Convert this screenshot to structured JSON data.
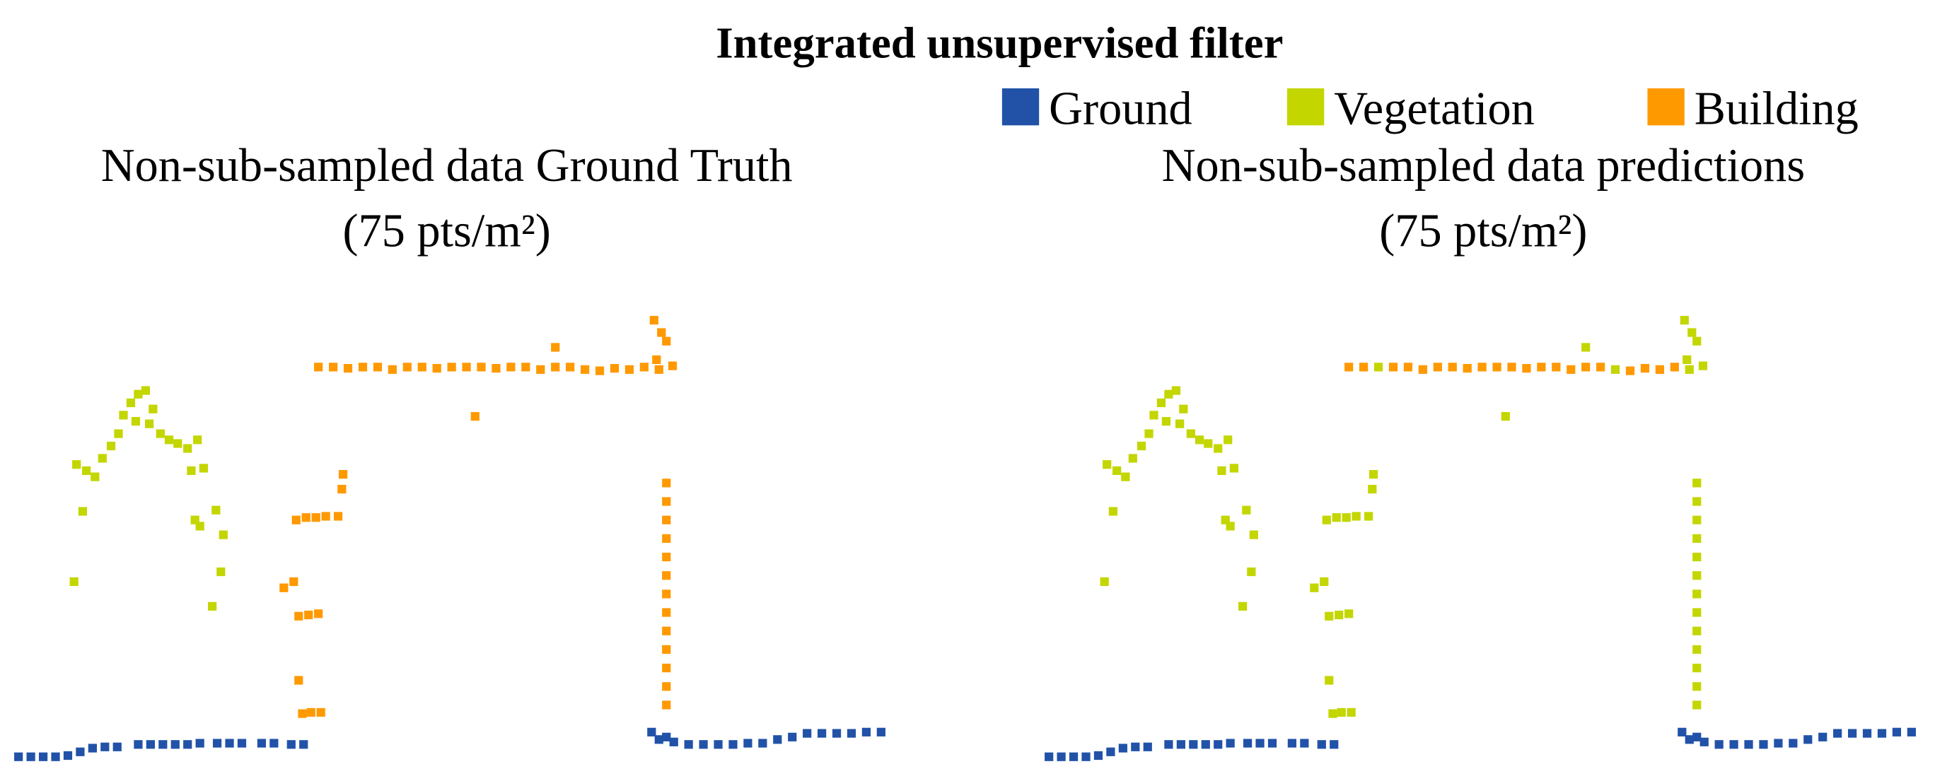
{
  "title": "Integrated unsupervised filter",
  "legend": [
    {
      "name": "Ground",
      "color": "#2152a8"
    },
    {
      "name": "Vegetation",
      "color": "#c3d600"
    },
    {
      "name": "Building",
      "color": "#ff9900"
    }
  ],
  "chart_data": [
    {
      "type": "scatter",
      "title": "Non-sub-sampled data Ground Truth",
      "subtitle": "(75 pts/m²)",
      "xlim": [
        0,
        720
      ],
      "ylim": [
        0,
        370
      ],
      "series": [
        {
          "x": [
            15,
            25,
            35,
            45,
            55,
            65,
            75,
            85,
            95,
            112,
            122,
            132,
            142,
            152,
            162,
            176,
            186,
            196,
            212,
            222,
            236,
            246,
            528,
            534,
            540,
            546,
            558,
            570,
            582,
            594,
            606,
            618,
            630,
            642,
            654,
            666,
            678,
            690,
            702,
            714
          ],
          "y": [
            8,
            8,
            8,
            8,
            9,
            12,
            15,
            16,
            16,
            18,
            18,
            18,
            18,
            18,
            19,
            19,
            19,
            19,
            19,
            19,
            18,
            18,
            28,
            22,
            24,
            20,
            18,
            18,
            18,
            18,
            19,
            19,
            22,
            24,
            27,
            27,
            27,
            27,
            28,
            28
          ]
        },
        {
          "x": [
            60,
            67,
            62,
            70,
            77,
            83,
            96,
            100,
            106,
            112,
            118,
            124,
            121,
            130,
            137,
            144,
            152,
            160,
            155,
            165,
            158,
            175,
            181,
            162,
            172,
            179,
            110,
            90
          ],
          "y": [
            150,
            207,
            245,
            240,
            235,
            250,
            270,
            285,
            295,
            302,
            305,
            290,
            278,
            270,
            265,
            262,
            258,
            265,
            240,
            242,
            200,
            208,
            188,
            195,
            130,
            158,
            280,
            260
          ]
        },
        {
          "x": [
            240,
            248,
            256,
            264,
            274,
            277,
            278,
            230,
            238,
            242,
            250,
            258,
            242,
            245,
            252,
            260,
            258,
            270,
            282,
            294,
            306,
            318,
            330,
            342,
            354,
            366,
            378,
            390,
            402,
            414,
            426,
            438,
            450,
            462,
            474,
            486,
            498,
            510,
            522,
            450,
            385,
            530,
            536,
            540,
            532,
            545,
            534,
            540,
            540,
            540,
            540,
            540,
            540,
            540,
            540,
            540,
            540,
            540,
            540,
            540
          ],
          "y": [
            200,
            202,
            202,
            203,
            203,
            225,
            237,
            145,
            150,
            122,
            123,
            124,
            70,
            43,
            44,
            44,
            324,
            324,
            323,
            324,
            324,
            322,
            324,
            324,
            323,
            324,
            324,
            324,
            323,
            324,
            324,
            322,
            324,
            324,
            322,
            321,
            323,
            322,
            324,
            340,
            284,
            362,
            352,
            345,
            330,
            325,
            322,
            230,
            215,
            200,
            185,
            170,
            155,
            140,
            125,
            110,
            95,
            80,
            65,
            50
          ]
        }
      ]
    },
    {
      "type": "scatter",
      "title": "Non-sub-sampled data predictions",
      "subtitle": "(75 pts/m²)",
      "xlim": [
        0,
        720
      ],
      "ylim": [
        0,
        370
      ],
      "series": [
        {
          "x": [
            15,
            25,
            35,
            45,
            55,
            65,
            75,
            85,
            95,
            112,
            122,
            132,
            142,
            152,
            162,
            176,
            186,
            196,
            212,
            222,
            236,
            246,
            528,
            534,
            540,
            546,
            558,
            570,
            582,
            594,
            606,
            618,
            630,
            642,
            654,
            666,
            678,
            690,
            702,
            714
          ],
          "y": [
            8,
            8,
            8,
            8,
            9,
            12,
            15,
            16,
            16,
            18,
            18,
            18,
            18,
            18,
            19,
            19,
            19,
            19,
            19,
            19,
            18,
            18,
            28,
            22,
            24,
            20,
            18,
            18,
            18,
            18,
            19,
            19,
            22,
            24,
            27,
            27,
            27,
            27,
            28,
            28
          ]
        },
        {
          "x": [
            60,
            67,
            62,
            70,
            77,
            83,
            96,
            100,
            106,
            112,
            118,
            124,
            121,
            130,
            137,
            144,
            152,
            160,
            155,
            165,
            158,
            175,
            181,
            162,
            172,
            179,
            110,
            90,
            240,
            248,
            256,
            264,
            274,
            277,
            278,
            230,
            238,
            242,
            250,
            258,
            242,
            245,
            252,
            260,
            282,
            474,
            450,
            385,
            530,
            536,
            540,
            532,
            545,
            534,
            540,
            540,
            540,
            540,
            540,
            540,
            540,
            540,
            540,
            540,
            540,
            540,
            540
          ],
          "y": [
            150,
            207,
            245,
            240,
            235,
            250,
            270,
            285,
            295,
            302,
            305,
            290,
            278,
            270,
            265,
            262,
            258,
            265,
            240,
            242,
            200,
            208,
            188,
            195,
            130,
            158,
            280,
            260,
            200,
            202,
            202,
            203,
            203,
            225,
            237,
            145,
            150,
            122,
            123,
            124,
            70,
            43,
            44,
            44,
            324,
            322,
            340,
            284,
            362,
            352,
            345,
            330,
            325,
            322,
            230,
            215,
            200,
            185,
            170,
            155,
            140,
            125,
            110,
            95,
            80,
            65,
            50
          ]
        },
        {
          "x": [
            258,
            270,
            294,
            306,
            318,
            330,
            342,
            354,
            366,
            378,
            390,
            402,
            414,
            426,
            438,
            450,
            462,
            486,
            498,
            510,
            522
          ],
          "y": [
            324,
            324,
            324,
            324,
            322,
            324,
            324,
            323,
            324,
            324,
            324,
            323,
            324,
            324,
            322,
            324,
            324,
            321,
            323,
            322,
            324
          ]
        }
      ]
    }
  ]
}
